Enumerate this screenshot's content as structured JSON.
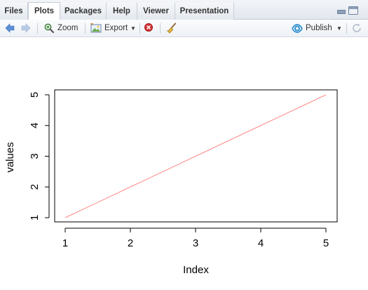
{
  "tabs": [
    {
      "label": "Files",
      "active": false
    },
    {
      "label": "Plots",
      "active": true
    },
    {
      "label": "Packages",
      "active": false
    },
    {
      "label": "Help",
      "active": false
    },
    {
      "label": "Viewer",
      "active": false
    },
    {
      "label": "Presentation",
      "active": false
    }
  ],
  "toolbar": {
    "zoom_label": "Zoom",
    "export_label": "Export",
    "publish_label": "Publish"
  },
  "icons": {
    "back": "arrow-left-icon",
    "forward": "arrow-right-icon",
    "zoom": "magnifier-icon",
    "export": "image-export-icon",
    "remove": "red-x-icon",
    "clear": "broom-icon",
    "publish": "publish-icon",
    "refresh": "refresh-icon"
  },
  "colors": {
    "line": "#ff8a8a",
    "back_arrow": "#5b8fd6",
    "forward_arrow": "#b8cbe6",
    "remove": "#d32f2f",
    "publish": "#2f8fd0"
  },
  "chart_data": {
    "type": "line",
    "x": [
      1,
      2,
      3,
      4,
      5
    ],
    "y": [
      1,
      2,
      3,
      4,
      5
    ],
    "xlabel": "Index",
    "ylabel": "values",
    "xlim": [
      1,
      5
    ],
    "ylim": [
      1,
      5
    ],
    "xticks": [
      "1",
      "2",
      "3",
      "4",
      "5"
    ],
    "yticks": [
      "1",
      "2",
      "3",
      "4",
      "5"
    ],
    "grid": false
  }
}
